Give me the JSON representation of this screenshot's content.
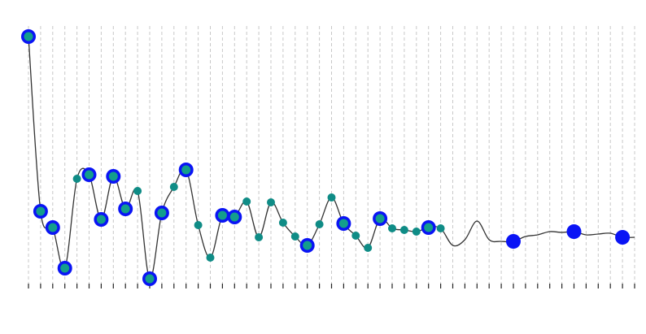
{
  "chart_data": {
    "type": "line",
    "title": "",
    "xlabel": "",
    "ylabel": "",
    "grid": "vertical-dashed",
    "x_count": 51,
    "ylim": [
      0,
      330
    ],
    "curve": [
      [
        0,
        310
      ],
      [
        1,
        95
      ],
      [
        2,
        75
      ],
      [
        3,
        25
      ],
      [
        4,
        135
      ],
      [
        5,
        140
      ],
      [
        6,
        85
      ],
      [
        7,
        138
      ],
      [
        8,
        98
      ],
      [
        9,
        120
      ],
      [
        10,
        12
      ],
      [
        11,
        93
      ],
      [
        12,
        125
      ],
      [
        13,
        146
      ],
      [
        14,
        78
      ],
      [
        15,
        38
      ],
      [
        16,
        90
      ],
      [
        17,
        88
      ],
      [
        18,
        107
      ],
      [
        19,
        63
      ],
      [
        20,
        106
      ],
      [
        21,
        81
      ],
      [
        22,
        64
      ],
      [
        23,
        53
      ],
      [
        24,
        79
      ],
      [
        25,
        112
      ],
      [
        26,
        80
      ],
      [
        27,
        65
      ],
      [
        28,
        50
      ],
      [
        29,
        86
      ],
      [
        30,
        74
      ],
      [
        31,
        72
      ],
      [
        32,
        70
      ],
      [
        33,
        75
      ],
      [
        34,
        74
      ],
      [
        35,
        53
      ],
      [
        36,
        60
      ],
      [
        37,
        83
      ],
      [
        38,
        60
      ],
      [
        39,
        58
      ],
      [
        40,
        58
      ],
      [
        41,
        64
      ],
      [
        42,
        66
      ],
      [
        43,
        70
      ],
      [
        44,
        69
      ],
      [
        45,
        70
      ],
      [
        46,
        66
      ],
      [
        47,
        67
      ],
      [
        48,
        68
      ],
      [
        49,
        63
      ],
      [
        50,
        63
      ]
    ],
    "series": [
      {
        "marker": "large",
        "points": [
          [
            0,
            310
          ],
          [
            1,
            95
          ],
          [
            2,
            75
          ],
          [
            3,
            25
          ],
          [
            5,
            140
          ],
          [
            6,
            85
          ],
          [
            7,
            138
          ],
          [
            8,
            98
          ],
          [
            10,
            12
          ],
          [
            11,
            93
          ],
          [
            13,
            146
          ],
          [
            16,
            90
          ],
          [
            17,
            88
          ],
          [
            23,
            53
          ],
          [
            26,
            80
          ],
          [
            29,
            86
          ],
          [
            33,
            75
          ],
          [
            40,
            58
          ],
          [
            45,
            70
          ],
          [
            49,
            63
          ]
        ]
      },
      {
        "marker": "small",
        "points": [
          [
            4,
            135
          ],
          [
            9,
            120
          ],
          [
            12,
            125
          ],
          [
            14,
            78
          ],
          [
            15,
            38
          ],
          [
            18,
            107
          ],
          [
            19,
            63
          ],
          [
            20,
            106
          ],
          [
            21,
            81
          ],
          [
            22,
            64
          ],
          [
            24,
            79
          ],
          [
            25,
            112
          ],
          [
            27,
            65
          ],
          [
            28,
            50
          ],
          [
            30,
            74
          ],
          [
            31,
            72
          ],
          [
            32,
            70
          ],
          [
            34,
            74
          ]
        ]
      }
    ],
    "colors": {
      "marker_outer": "#0a14f5",
      "marker_inner": "#139e8c",
      "marker_small": "#0f8c86",
      "curve": "#333333",
      "grid": "#c8c8c8",
      "tick": "#222222"
    }
  }
}
